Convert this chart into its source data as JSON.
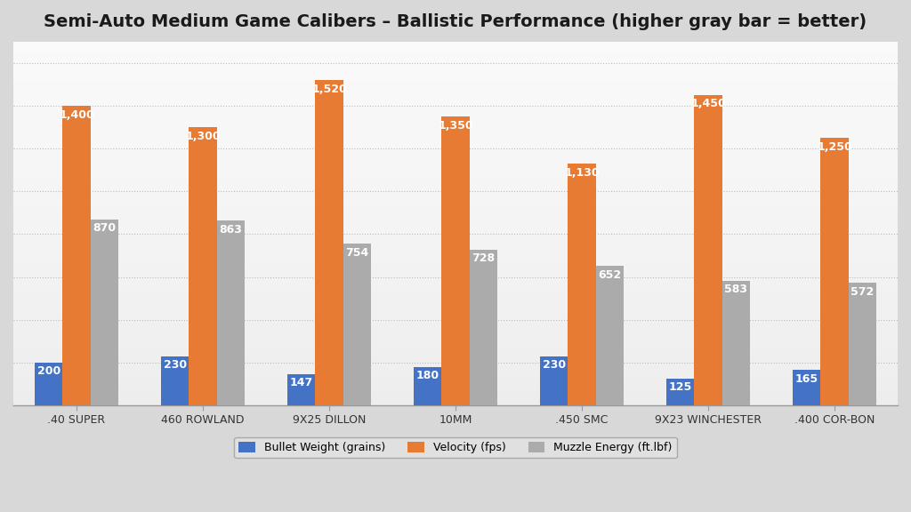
{
  "title": "Semi-Auto Medium Game Calibers – Ballistic Performance (higher gray bar = better)",
  "categories": [
    ".40 SUPER",
    "460 ROWLAND",
    "9X25 DILLON",
    "10MM",
    ".450 SMC",
    "9X23 WINCHESTER",
    ".400 COR-BON"
  ],
  "bullet_weight": [
    200,
    230,
    147,
    180,
    230,
    125,
    165
  ],
  "velocity": [
    1400,
    1300,
    1520,
    1350,
    1130,
    1450,
    1250
  ],
  "muzzle_energy": [
    870,
    863,
    754,
    728,
    652,
    583,
    572
  ],
  "bullet_weight_color": "#4472C4",
  "velocity_color": "#E87B34",
  "muzzle_energy_color": "#ABABAB",
  "bg_color": "#D8D8D8",
  "plot_bg_light": "#E8E8E8",
  "title_fontsize": 14,
  "bar_label_fontsize": 9,
  "legend_fontsize": 9,
  "xlabel_fontsize": 9,
  "ylim": [
    0,
    1700
  ],
  "bar_width": 0.22,
  "legend_labels": [
    "Bullet Weight (grains)",
    "Velocity (fps)",
    "Muzzle Energy (ft.lbf)"
  ],
  "gridline_color": "#CCCCCC",
  "label_color": "white"
}
